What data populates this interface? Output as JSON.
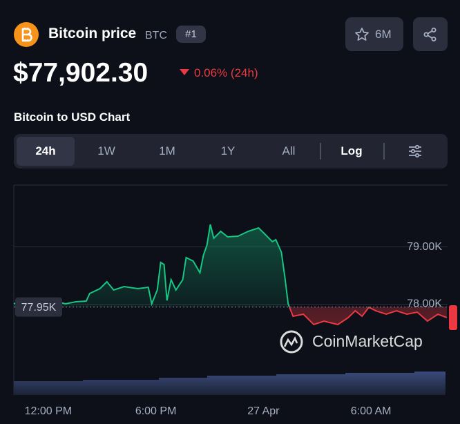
{
  "header": {
    "name": "Bitcoin price",
    "symbol": "BTC",
    "rank": "#1",
    "watchlist": "6M",
    "price": "$77,902.30",
    "change": "0.06% (24h)",
    "chart_heading": "Bitcoin to USD Chart"
  },
  "tabs": [
    "24h",
    "1W",
    "1M",
    "1Y",
    "All",
    "Log"
  ],
  "chart_data": {
    "type": "line",
    "watermark": "CoinMarketCap",
    "x": [
      10.08,
      10.85,
      11.62,
      12.38,
      12.96,
      13.54,
      14.12,
      14.31,
      14.88,
      15.27,
      15.65,
      16.23,
      17.0,
      17.58,
      17.77,
      18.08,
      18.27,
      18.46,
      18.62,
      18.85,
      19.12,
      19.5,
      19.69,
      20.08,
      20.46,
      20.65,
      20.85,
      21.04,
      21.23,
      21.62,
      22.0,
      22.58,
      23.15,
      23.73,
      24.12,
      24.5,
      24.69,
      25.0,
      25.19,
      25.38,
      25.65,
      26.23,
      26.81,
      27.38,
      28.15,
      28.73,
      29.12,
      29.5,
      29.88,
      30.27,
      30.85,
      31.42,
      32.0,
      32.58,
      33.15,
      33.73,
      34.23
    ],
    "series": [
      {
        "name": "BTC/USD",
        "color": "#16c784",
        "down_color": "#ea3943",
        "values": [
          78006,
          78102,
          78030,
          78054,
          78006,
          78042,
          78054,
          78187,
          78271,
          78392,
          78247,
          78307,
          78271,
          78295,
          78006,
          78247,
          78729,
          78693,
          78066,
          78428,
          78247,
          78428,
          78814,
          78754,
          78549,
          78850,
          79031,
          79393,
          79152,
          79272,
          79176,
          79188,
          79272,
          79332,
          79212,
          79091,
          79127,
          78910,
          78488,
          78006,
          77789,
          77825,
          77644,
          77704,
          77644,
          77765,
          77885,
          77789,
          77946,
          77885,
          77825,
          77885,
          77825,
          77861,
          77704,
          77825,
          77765
        ]
      }
    ],
    "xlim": [
      10.08,
      34.27
    ],
    "ylim": [
      76800,
      80080
    ],
    "xticks": [
      {
        "value": 12,
        "label": "12:00 PM"
      },
      {
        "value": 18,
        "label": "6:00 PM"
      },
      {
        "value": 24,
        "label": "27 Apr"
      },
      {
        "value": 30,
        "label": "6:00 AM"
      }
    ],
    "yticks": [
      {
        "value": 78000,
        "label": "78.00K"
      },
      {
        "value": 79000,
        "label": "79.00K"
      }
    ],
    "baseline": {
      "value": 77950,
      "label": "77.95K"
    },
    "grid": true
  }
}
